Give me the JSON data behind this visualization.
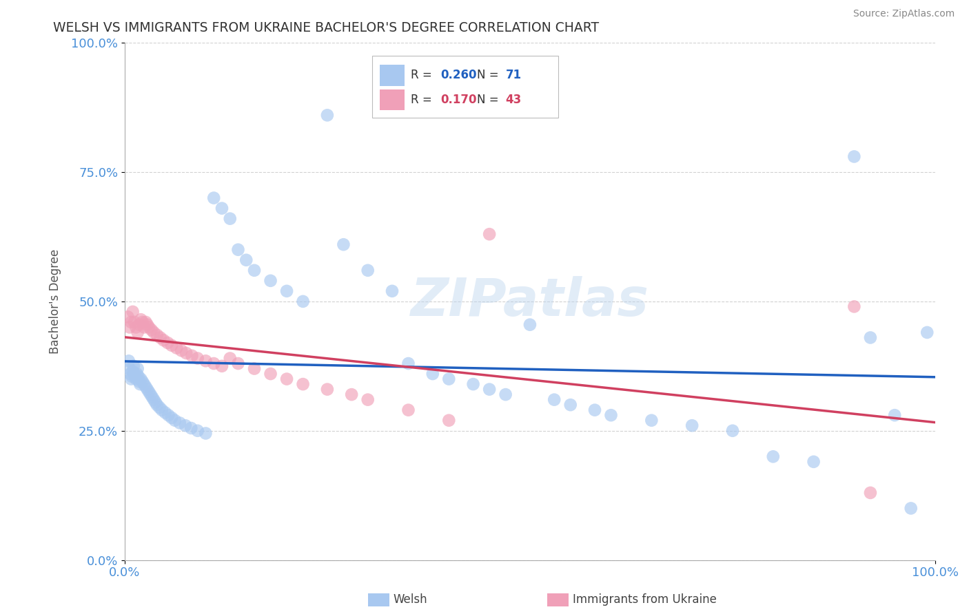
{
  "title": "WELSH VS IMMIGRANTS FROM UKRAINE BACHELOR'S DEGREE CORRELATION CHART",
  "source": "Source: ZipAtlas.com",
  "ylabel": "Bachelor's Degree",
  "watermark": "ZIPatlas",
  "x_tick_labels": [
    "0.0%",
    "100.0%"
  ],
  "y_tick_labels": [
    "0.0%",
    "25.0%",
    "50.0%",
    "75.0%",
    "100.0%"
  ],
  "x_tick_positions": [
    0.0,
    1.0
  ],
  "y_tick_positions": [
    0.0,
    0.25,
    0.5,
    0.75,
    1.0
  ],
  "legend_label1": "Welsh",
  "legend_label2": "Immigrants from Ukraine",
  "R1": "0.260",
  "N1": "71",
  "R2": "0.170",
  "N2": "43",
  "color_blue": "#A8C8F0",
  "color_pink": "#F0A0B8",
  "color_blue_line": "#2060C0",
  "color_pink_line": "#D04060",
  "background_color": "#FFFFFF",
  "title_color": "#333333",
  "axis_label_color": "#4A90D9",
  "source_color": "#888888",
  "welsh_x": [
    0.005,
    0.006,
    0.007,
    0.008,
    0.009,
    0.01,
    0.011,
    0.012,
    0.013,
    0.014,
    0.015,
    0.016,
    0.017,
    0.018,
    0.019,
    0.02,
    0.022,
    0.024,
    0.026,
    0.028,
    0.03,
    0.032,
    0.034,
    0.036,
    0.038,
    0.04,
    0.043,
    0.046,
    0.05,
    0.054,
    0.058,
    0.062,
    0.068,
    0.075,
    0.082,
    0.09,
    0.1,
    0.11,
    0.12,
    0.13,
    0.14,
    0.15,
    0.16,
    0.18,
    0.2,
    0.22,
    0.25,
    0.27,
    0.3,
    0.33,
    0.35,
    0.38,
    0.4,
    0.43,
    0.45,
    0.47,
    0.5,
    0.53,
    0.55,
    0.58,
    0.6,
    0.65,
    0.7,
    0.75,
    0.8,
    0.85,
    0.9,
    0.92,
    0.95,
    0.97,
    0.99
  ],
  "welsh_y": [
    0.385,
    0.37,
    0.36,
    0.35,
    0.355,
    0.365,
    0.375,
    0.36,
    0.355,
    0.35,
    0.36,
    0.37,
    0.355,
    0.345,
    0.34,
    0.35,
    0.345,
    0.34,
    0.335,
    0.33,
    0.325,
    0.32,
    0.315,
    0.31,
    0.305,
    0.3,
    0.295,
    0.29,
    0.285,
    0.28,
    0.275,
    0.27,
    0.265,
    0.26,
    0.255,
    0.25,
    0.245,
    0.7,
    0.68,
    0.66,
    0.6,
    0.58,
    0.56,
    0.54,
    0.52,
    0.5,
    0.86,
    0.61,
    0.56,
    0.52,
    0.38,
    0.36,
    0.35,
    0.34,
    0.33,
    0.32,
    0.455,
    0.31,
    0.3,
    0.29,
    0.28,
    0.27,
    0.26,
    0.25,
    0.2,
    0.19,
    0.78,
    0.43,
    0.28,
    0.1,
    0.44
  ],
  "ukraine_x": [
    0.004,
    0.006,
    0.008,
    0.01,
    0.012,
    0.014,
    0.016,
    0.018,
    0.02,
    0.022,
    0.024,
    0.026,
    0.028,
    0.03,
    0.033,
    0.036,
    0.04,
    0.044,
    0.048,
    0.053,
    0.058,
    0.064,
    0.07,
    0.076,
    0.083,
    0.09,
    0.1,
    0.11,
    0.12,
    0.13,
    0.14,
    0.16,
    0.18,
    0.2,
    0.22,
    0.25,
    0.28,
    0.3,
    0.35,
    0.4,
    0.45,
    0.9,
    0.92
  ],
  "ukraine_y": [
    0.47,
    0.45,
    0.46,
    0.48,
    0.46,
    0.45,
    0.44,
    0.455,
    0.465,
    0.46,
    0.45,
    0.46,
    0.455,
    0.45,
    0.445,
    0.44,
    0.435,
    0.43,
    0.425,
    0.42,
    0.415,
    0.41,
    0.405,
    0.4,
    0.395,
    0.39,
    0.385,
    0.38,
    0.375,
    0.39,
    0.38,
    0.37,
    0.36,
    0.35,
    0.34,
    0.33,
    0.32,
    0.31,
    0.29,
    0.27,
    0.63,
    0.49,
    0.13
  ]
}
